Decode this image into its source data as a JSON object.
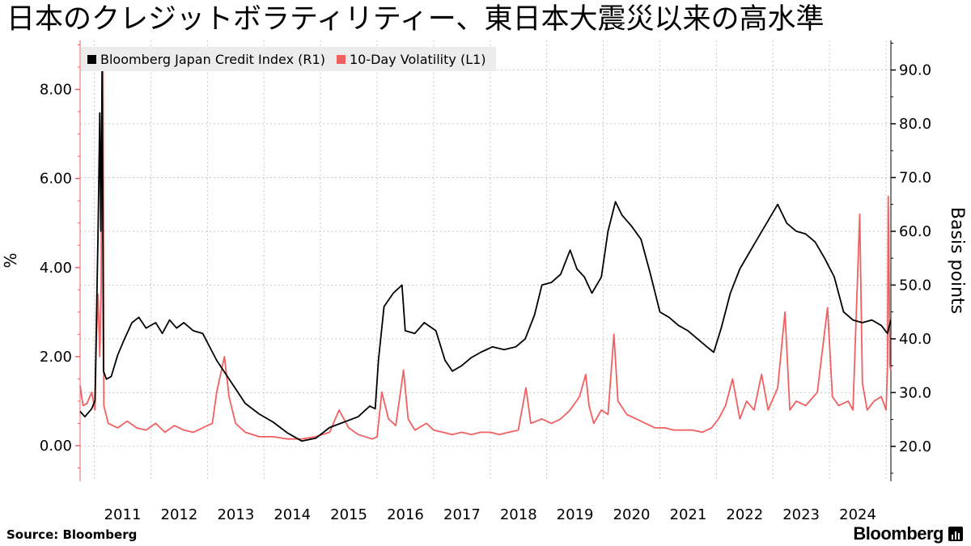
{
  "title": "日本のクレジットボラティリティー、東日本大震災以来の高水準",
  "legend": [
    {
      "label": "Bloomberg Japan Credit Index (R1)",
      "color": "#000000"
    },
    {
      "label": "10-Day Volatility (L1)",
      "color": "#f06060"
    }
  ],
  "source": "Source:  Bloomberg",
  "brand": "Bloomberg",
  "chart_data": {
    "type": "line",
    "xlabel": "",
    "x_ticks": [
      "2011",
      "2012",
      "2013",
      "2014",
      "2015",
      "2016",
      "2017",
      "2018",
      "2019",
      "2020",
      "2021",
      "2022",
      "2023",
      "2024"
    ],
    "left_axis": {
      "label": "%",
      "ticks": [
        "0.00",
        "2.00",
        "4.00",
        "6.00",
        "8.00"
      ],
      "range": [
        -0.8,
        9.1
      ]
    },
    "right_axis": {
      "label": "Basis points",
      "ticks": [
        "20.0",
        "30.0",
        "40.0",
        "50.0",
        "60.0",
        "70.0",
        "80.0",
        "90.0"
      ],
      "range": [
        13.5,
        95.5
      ]
    },
    "grid": true,
    "legend_position": "top-left",
    "series": [
      {
        "name": "Bloomberg Japan Credit Index (R1)",
        "axis": "right",
        "color": "#000000",
        "points": [
          [
            "2010-10-01",
            26.5
          ],
          [
            "2010-11-01",
            25.5
          ],
          [
            "2010-12-15",
            27.0
          ],
          [
            "2011-01-05",
            28.5
          ],
          [
            "2011-01-25",
            60.0
          ],
          [
            "2011-02-05",
            82.0
          ],
          [
            "2011-02-12",
            60.0
          ],
          [
            "2011-02-20",
            90.0
          ],
          [
            "2011-02-26",
            55.0
          ],
          [
            "2011-03-01",
            34.0
          ],
          [
            "2011-03-20",
            32.5
          ],
          [
            "2011-04-20",
            33.0
          ],
          [
            "2011-06-01",
            37.0
          ],
          [
            "2011-07-15",
            40.0
          ],
          [
            "2011-09-01",
            43.0
          ],
          [
            "2011-10-15",
            44.0
          ],
          [
            "2011-12-01",
            42.0
          ],
          [
            "2012-02-01",
            43.0
          ],
          [
            "2012-03-15",
            41.0
          ],
          [
            "2012-05-01",
            43.5
          ],
          [
            "2012-06-15",
            42.0
          ],
          [
            "2012-08-01",
            43.0
          ],
          [
            "2012-10-01",
            41.5
          ],
          [
            "2012-12-01",
            41.0
          ],
          [
            "2013-03-01",
            36.0
          ],
          [
            "2013-06-01",
            32.0
          ],
          [
            "2013-09-01",
            28.0
          ],
          [
            "2013-12-01",
            26.0
          ],
          [
            "2014-03-01",
            24.5
          ],
          [
            "2014-06-01",
            22.5
          ],
          [
            "2014-09-01",
            21.0
          ],
          [
            "2014-12-01",
            21.5
          ],
          [
            "2015-03-01",
            23.5
          ],
          [
            "2015-06-01",
            24.5
          ],
          [
            "2015-09-01",
            25.5
          ],
          [
            "2015-11-15",
            27.5
          ],
          [
            "2015-12-20",
            27.0
          ],
          [
            "2016-01-10",
            36.0
          ],
          [
            "2016-02-15",
            46.0
          ],
          [
            "2016-04-15",
            48.5
          ],
          [
            "2016-06-10",
            50.0
          ],
          [
            "2016-07-01",
            41.5
          ],
          [
            "2016-09-01",
            41.0
          ],
          [
            "2016-11-01",
            43.0
          ],
          [
            "2017-01-15",
            41.5
          ],
          [
            "2017-03-15",
            36.0
          ],
          [
            "2017-05-01",
            34.0
          ],
          [
            "2017-07-01",
            35.0
          ],
          [
            "2017-09-01",
            36.5
          ],
          [
            "2017-11-01",
            37.5
          ],
          [
            "2018-01-15",
            38.5
          ],
          [
            "2018-04-01",
            38.0
          ],
          [
            "2018-06-15",
            38.5
          ],
          [
            "2018-08-15",
            40.0
          ],
          [
            "2018-10-15",
            44.5
          ],
          [
            "2018-12-01",
            50.0
          ],
          [
            "2019-02-01",
            50.5
          ],
          [
            "2019-04-01",
            52.0
          ],
          [
            "2019-06-01",
            56.5
          ],
          [
            "2019-07-15",
            53.0
          ],
          [
            "2019-09-01",
            51.5
          ],
          [
            "2019-10-20",
            48.5
          ],
          [
            "2019-12-20",
            51.5
          ],
          [
            "2020-02-01",
            60.0
          ],
          [
            "2020-03-20",
            65.5
          ],
          [
            "2020-05-01",
            63.0
          ],
          [
            "2020-07-01",
            61.0
          ],
          [
            "2020-09-01",
            58.5
          ],
          [
            "2020-11-01",
            52.0
          ],
          [
            "2021-01-01",
            45.0
          ],
          [
            "2021-03-01",
            44.0
          ],
          [
            "2021-05-01",
            42.5
          ],
          [
            "2021-07-01",
            41.5
          ],
          [
            "2021-09-01",
            40.0
          ],
          [
            "2021-11-01",
            38.5
          ],
          [
            "2021-12-15",
            37.5
          ],
          [
            "2022-02-01",
            42.0
          ],
          [
            "2022-04-01",
            48.5
          ],
          [
            "2022-06-01",
            53.0
          ],
          [
            "2022-08-01",
            56.0
          ],
          [
            "2022-10-01",
            59.0
          ],
          [
            "2022-12-01",
            62.0
          ],
          [
            "2023-02-01",
            65.0
          ],
          [
            "2023-04-01",
            61.5
          ],
          [
            "2023-06-01",
            60.0
          ],
          [
            "2023-08-01",
            59.5
          ],
          [
            "2023-10-01",
            58.0
          ],
          [
            "2023-12-01",
            55.0
          ],
          [
            "2024-02-01",
            51.5
          ],
          [
            "2024-04-01",
            45.0
          ],
          [
            "2024-06-01",
            43.5
          ],
          [
            "2024-08-01",
            43.0
          ],
          [
            "2024-10-01",
            43.5
          ],
          [
            "2024-12-01",
            42.5
          ],
          [
            "2025-01-10",
            41.0
          ],
          [
            "2025-01-31",
            43.5
          ]
        ]
      },
      {
        "name": "10-Day Volatility (L1)",
        "axis": "left",
        "color": "#f06060",
        "points": [
          [
            "2010-10-01",
            1.35
          ],
          [
            "2010-10-20",
            0.9
          ],
          [
            "2010-11-15",
            0.95
          ],
          [
            "2010-12-15",
            1.2
          ],
          [
            "2011-01-05",
            0.8
          ],
          [
            "2011-01-15",
            2.5
          ],
          [
            "2011-01-25",
            3.4
          ],
          [
            "2011-02-05",
            2.0
          ],
          [
            "2011-02-14",
            3.5
          ],
          [
            "2011-02-20",
            8.9
          ],
          [
            "2011-02-26",
            8.8
          ],
          [
            "2011-03-03",
            0.9
          ],
          [
            "2011-04-01",
            0.5
          ],
          [
            "2011-06-01",
            0.4
          ],
          [
            "2011-08-01",
            0.55
          ],
          [
            "2011-10-01",
            0.4
          ],
          [
            "2011-12-01",
            0.35
          ],
          [
            "2012-02-01",
            0.5
          ],
          [
            "2012-04-01",
            0.3
          ],
          [
            "2012-06-01",
            0.45
          ],
          [
            "2012-08-01",
            0.35
          ],
          [
            "2012-10-01",
            0.3
          ],
          [
            "2012-12-01",
            0.4
          ],
          [
            "2013-02-01",
            0.5
          ],
          [
            "2013-03-01",
            1.2
          ],
          [
            "2013-04-20",
            2.0
          ],
          [
            "2013-05-20",
            1.1
          ],
          [
            "2013-07-01",
            0.5
          ],
          [
            "2013-09-01",
            0.3
          ],
          [
            "2013-12-01",
            0.2
          ],
          [
            "2014-03-01",
            0.2
          ],
          [
            "2014-06-01",
            0.15
          ],
          [
            "2014-09-01",
            0.15
          ],
          [
            "2014-12-01",
            0.2
          ],
          [
            "2015-03-01",
            0.3
          ],
          [
            "2015-05-01",
            0.8
          ],
          [
            "2015-07-01",
            0.4
          ],
          [
            "2015-09-01",
            0.25
          ],
          [
            "2015-12-01",
            0.15
          ],
          [
            "2016-01-01",
            0.2
          ],
          [
            "2016-02-01",
            1.2
          ],
          [
            "2016-03-15",
            0.6
          ],
          [
            "2016-05-01",
            0.45
          ],
          [
            "2016-06-20",
            1.7
          ],
          [
            "2016-07-20",
            0.6
          ],
          [
            "2016-09-01",
            0.35
          ],
          [
            "2016-11-15",
            0.5
          ],
          [
            "2017-01-01",
            0.35
          ],
          [
            "2017-03-01",
            0.3
          ],
          [
            "2017-05-01",
            0.25
          ],
          [
            "2017-07-01",
            0.3
          ],
          [
            "2017-09-01",
            0.25
          ],
          [
            "2017-11-01",
            0.3
          ],
          [
            "2018-01-01",
            0.3
          ],
          [
            "2018-03-01",
            0.25
          ],
          [
            "2018-05-01",
            0.3
          ],
          [
            "2018-07-01",
            0.35
          ],
          [
            "2018-08-20",
            1.3
          ],
          [
            "2018-09-20",
            0.5
          ],
          [
            "2018-12-01",
            0.6
          ],
          [
            "2019-02-01",
            0.5
          ],
          [
            "2019-04-01",
            0.6
          ],
          [
            "2019-06-01",
            0.8
          ],
          [
            "2019-08-01",
            1.1
          ],
          [
            "2019-09-10",
            1.6
          ],
          [
            "2019-10-01",
            0.9
          ],
          [
            "2019-11-01",
            0.5
          ],
          [
            "2019-12-20",
            0.8
          ],
          [
            "2020-02-01",
            0.7
          ],
          [
            "2020-03-10",
            2.5
          ],
          [
            "2020-04-05",
            1.0
          ],
          [
            "2020-06-01",
            0.7
          ],
          [
            "2020-08-01",
            0.6
          ],
          [
            "2020-10-01",
            0.5
          ],
          [
            "2020-12-01",
            0.4
          ],
          [
            "2021-02-01",
            0.4
          ],
          [
            "2021-04-01",
            0.35
          ],
          [
            "2021-06-01",
            0.35
          ],
          [
            "2021-08-01",
            0.35
          ],
          [
            "2021-10-01",
            0.3
          ],
          [
            "2021-12-01",
            0.4
          ],
          [
            "2022-01-15",
            0.6
          ],
          [
            "2022-03-01",
            0.9
          ],
          [
            "2022-04-15",
            1.5
          ],
          [
            "2022-06-01",
            0.6
          ],
          [
            "2022-07-15",
            1.0
          ],
          [
            "2022-09-01",
            0.8
          ],
          [
            "2022-10-20",
            1.6
          ],
          [
            "2022-12-01",
            0.8
          ],
          [
            "2023-02-01",
            1.3
          ],
          [
            "2023-03-20",
            3.0
          ],
          [
            "2023-04-20",
            0.8
          ],
          [
            "2023-06-01",
            1.0
          ],
          [
            "2023-08-01",
            0.9
          ],
          [
            "2023-10-15",
            1.2
          ],
          [
            "2023-12-20",
            3.1
          ],
          [
            "2024-01-20",
            1.1
          ],
          [
            "2024-03-01",
            0.9
          ],
          [
            "2024-05-01",
            1.0
          ],
          [
            "2024-06-01",
            0.8
          ],
          [
            "2024-07-15",
            5.2
          ],
          [
            "2024-08-01",
            1.4
          ],
          [
            "2024-09-01",
            0.8
          ],
          [
            "2024-10-15",
            1.0
          ],
          [
            "2024-12-01",
            1.1
          ],
          [
            "2025-01-01",
            0.8
          ],
          [
            "2025-01-10",
            1.8
          ],
          [
            "2025-01-15",
            5.6
          ],
          [
            "2025-01-20",
            4.0
          ],
          [
            "2025-01-25",
            1.8
          ],
          [
            "2025-01-31",
            1.7
          ]
        ]
      }
    ]
  }
}
